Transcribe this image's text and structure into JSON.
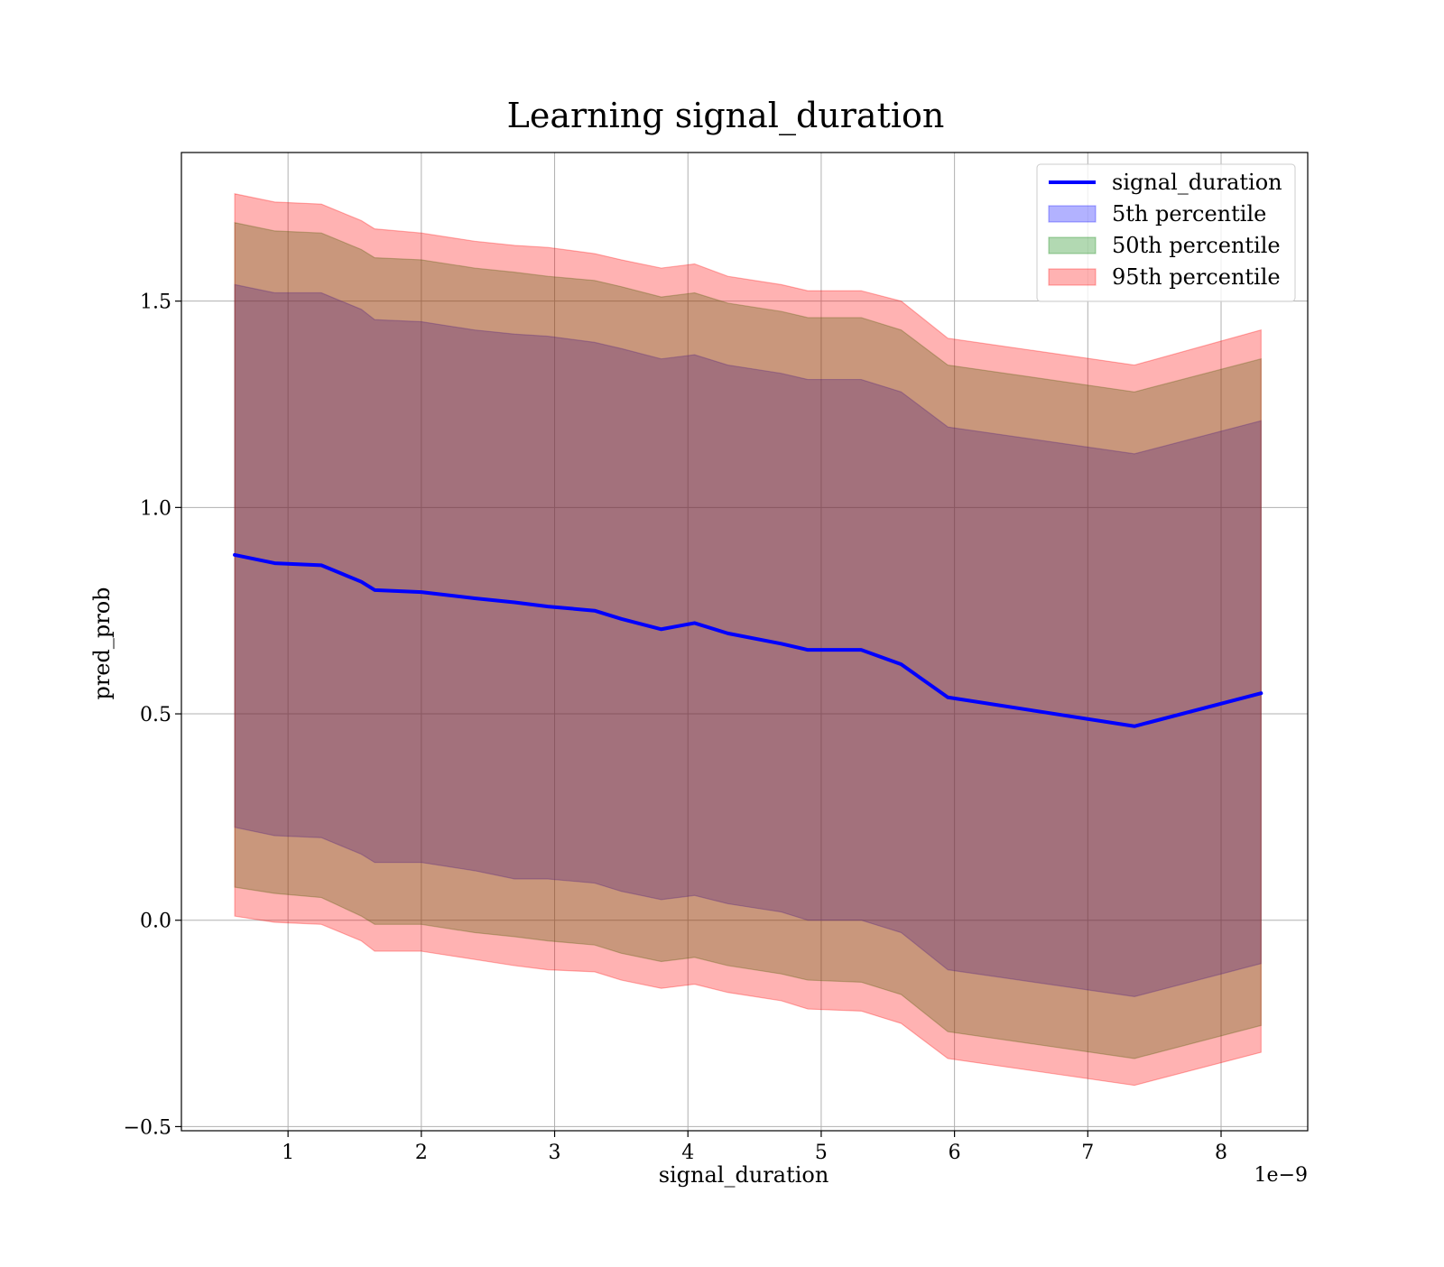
{
  "chart_data": {
    "type": "area",
    "title": "Learning signal_duration",
    "xlabel": "signal_duration",
    "ylabel": "pred_prob",
    "x_offset_label": "1e−9",
    "xlim": [
      0.2,
      8.65
    ],
    "ylim": [
      -0.51,
      1.86
    ],
    "x_ticks": [
      1,
      2,
      3,
      4,
      5,
      6,
      7,
      8
    ],
    "x_tick_labels": [
      "1",
      "2",
      "3",
      "4",
      "5",
      "6",
      "7",
      "8"
    ],
    "y_ticks": [
      -0.5,
      0.0,
      0.5,
      1.0,
      1.5
    ],
    "y_tick_labels": [
      "−0.5",
      "0.0",
      "0.5",
      "1.0",
      "1.5"
    ],
    "grid": true,
    "legend_position": "top-right",
    "x": [
      0.6,
      0.9,
      1.25,
      1.55,
      1.65,
      2.0,
      2.4,
      2.7,
      2.95,
      3.3,
      3.5,
      3.8,
      4.05,
      4.3,
      4.7,
      4.9,
      5.3,
      5.6,
      5.95,
      7.35,
      8.3
    ],
    "series": [
      {
        "name": "signal_duration",
        "type": "line",
        "color": "#0000ff",
        "values": [
          0.885,
          0.865,
          0.86,
          0.82,
          0.8,
          0.795,
          0.78,
          0.77,
          0.76,
          0.75,
          0.73,
          0.705,
          0.72,
          0.695,
          0.67,
          0.655,
          0.655,
          0.62,
          0.54,
          0.47,
          0.55
        ]
      },
      {
        "name": "5th percentile",
        "type": "band",
        "color": "#0000ff",
        "lower": [
          0.225,
          0.205,
          0.2,
          0.16,
          0.14,
          0.14,
          0.12,
          0.1,
          0.1,
          0.09,
          0.07,
          0.05,
          0.06,
          0.04,
          0.02,
          0.0,
          0.0,
          -0.03,
          -0.12,
          -0.185,
          -0.105
        ],
        "upper": [
          1.54,
          1.52,
          1.52,
          1.48,
          1.455,
          1.45,
          1.43,
          1.42,
          1.415,
          1.4,
          1.385,
          1.36,
          1.37,
          1.345,
          1.325,
          1.31,
          1.31,
          1.28,
          1.195,
          1.13,
          1.21
        ]
      },
      {
        "name": "50th percentile",
        "type": "band",
        "color": "#008000",
        "lower": [
          0.08,
          0.065,
          0.055,
          0.01,
          -0.01,
          -0.01,
          -0.03,
          -0.04,
          -0.05,
          -0.06,
          -0.08,
          -0.1,
          -0.09,
          -0.11,
          -0.13,
          -0.145,
          -0.15,
          -0.18,
          -0.27,
          -0.335,
          -0.255
        ],
        "upper": [
          1.69,
          1.67,
          1.665,
          1.625,
          1.605,
          1.6,
          1.58,
          1.57,
          1.56,
          1.55,
          1.535,
          1.51,
          1.52,
          1.495,
          1.475,
          1.46,
          1.46,
          1.43,
          1.345,
          1.28,
          1.36
        ]
      },
      {
        "name": "95th percentile",
        "type": "band",
        "color": "#ff0000",
        "lower": [
          0.01,
          -0.005,
          -0.01,
          -0.05,
          -0.075,
          -0.075,
          -0.095,
          -0.11,
          -0.12,
          -0.125,
          -0.145,
          -0.165,
          -0.155,
          -0.175,
          -0.195,
          -0.215,
          -0.22,
          -0.25,
          -0.335,
          -0.4,
          -0.32
        ],
        "upper": [
          1.76,
          1.74,
          1.735,
          1.695,
          1.675,
          1.665,
          1.645,
          1.635,
          1.63,
          1.615,
          1.6,
          1.58,
          1.59,
          1.56,
          1.54,
          1.525,
          1.525,
          1.5,
          1.41,
          1.345,
          1.43
        ]
      }
    ]
  }
}
